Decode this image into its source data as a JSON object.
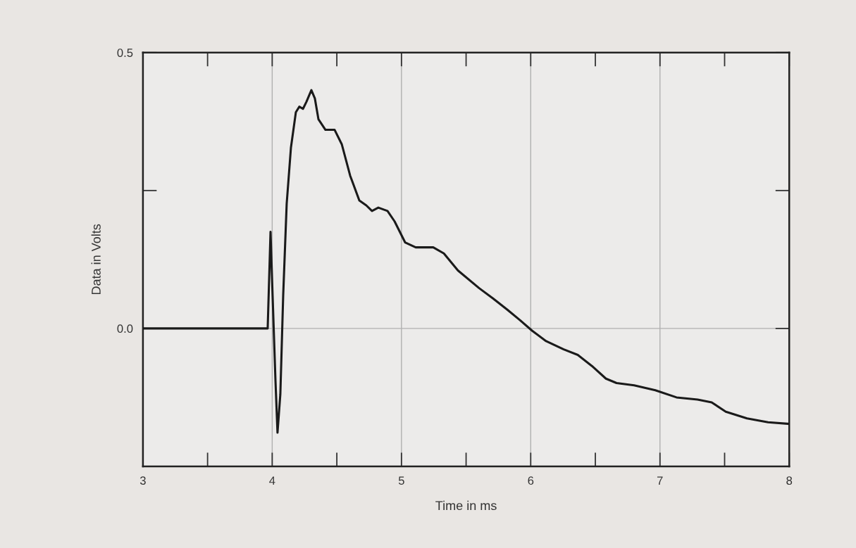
{
  "chart_data": {
    "type": "line",
    "xlabel": "Time in ms",
    "ylabel": "Data in Volts",
    "xlim": [
      3,
      8
    ],
    "ylim": [
      -0.25,
      0.5
    ],
    "xticks": [
      3,
      4,
      5,
      6,
      7,
      8
    ],
    "yticks": [
      {
        "value": 0,
        "label": "0.0"
      },
      0.5
    ],
    "grid": "x",
    "ref_lines": [
      {
        "axis": "y",
        "value": 0,
        "color": "#b0b0b0"
      }
    ],
    "marker": "none",
    "line_style": "solid",
    "series": [
      {
        "color": "#1a1a1a",
        "x": [
          3,
          3.954,
          3.965,
          3.987,
          4.003,
          4.025,
          4.041,
          4.063,
          4.085,
          4.112,
          4.145,
          4.183,
          4.21,
          4.238,
          4.265,
          4.303,
          4.33,
          4.358,
          4.412,
          4.483,
          4.538,
          4.603,
          4.674,
          4.728,
          4.772,
          4.821,
          4.892,
          4.947,
          5.028,
          5.11,
          5.246,
          5.328,
          5.437,
          5.601,
          5.71,
          5.819,
          5.917,
          6.01,
          6.119,
          6.255,
          6.364,
          6.473,
          6.582,
          6.664,
          6.8,
          6.964,
          7.128,
          7.291,
          7.4,
          7.509,
          7.673,
          7.836,
          8
        ],
        "values": [
          0,
          0,
          0,
          0.175,
          0.06,
          -0.093,
          -0.189,
          -0.119,
          0.06,
          0.226,
          0.328,
          0.392,
          0.402,
          0.398,
          0.411,
          0.432,
          0.417,
          0.379,
          0.36,
          0.36,
          0.334,
          0.277,
          0.232,
          0.223,
          0.213,
          0.219,
          0.213,
          0.194,
          0.156,
          0.147,
          0.147,
          0.136,
          0.105,
          0.073,
          0.054,
          0.034,
          0.015,
          -0.004,
          -0.023,
          -0.038,
          -0.048,
          -0.068,
          -0.091,
          -0.099,
          -0.103,
          -0.112,
          -0.125,
          -0.129,
          -0.134,
          -0.151,
          -0.163,
          -0.17,
          -0.173
        ]
      }
    ]
  }
}
